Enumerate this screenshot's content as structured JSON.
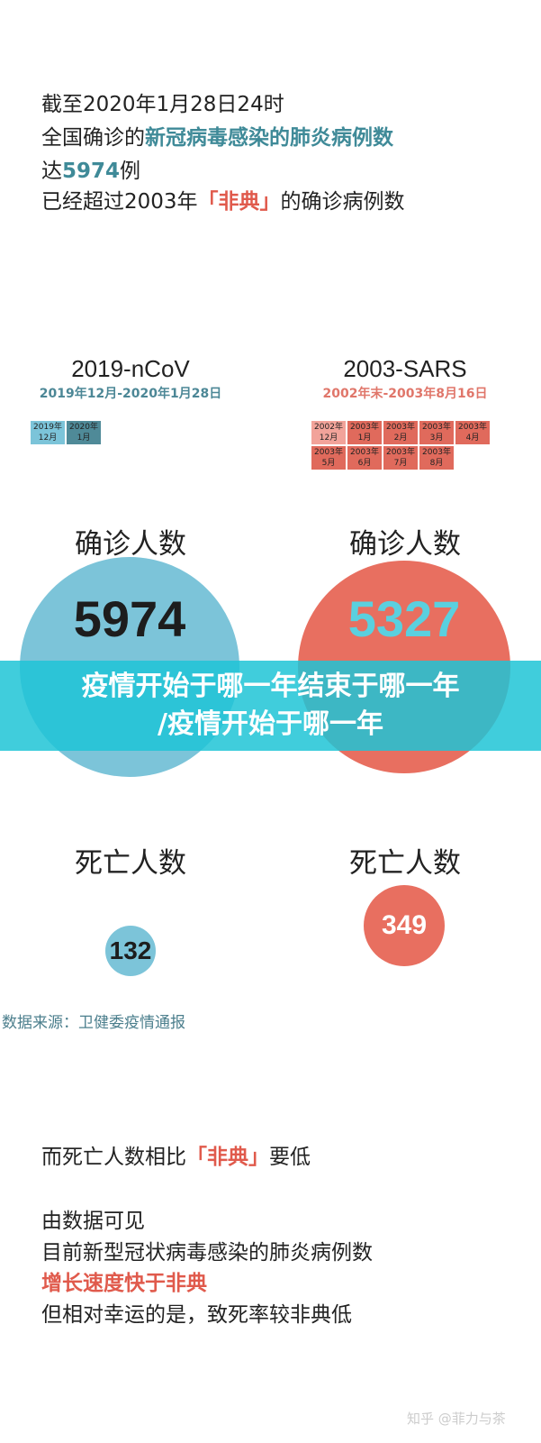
{
  "intro": {
    "l1": "截至2020年1月28日24时",
    "l2a": "全国确诊的",
    "l2b": "新冠病毒感染的肺炎病例数",
    "l3a": "达",
    "l3b": "5974",
    "l3c": "例",
    "l4a": "已经超过2003年",
    "l4b": "「非典」",
    "l4c": "的确诊病例数"
  },
  "ncov": {
    "title": "2019-nCoV",
    "range": "2019年12月-2020年1月28日",
    "months": [
      "2019年\n12月",
      "2020年\n1月"
    ],
    "confirmed_label": "确诊人数",
    "confirmed": "5974",
    "death_label": "死亡人数",
    "deaths": "132",
    "color": "#7cc4d9"
  },
  "sars": {
    "title": "2003-SARS",
    "range": "2002年末-2003年8月16日",
    "months": [
      "2002年\n12月",
      "2003年\n1月",
      "2003年\n2月",
      "2003年\n3月",
      "2003年\n4月",
      "2003年\n5月",
      "2003年\n6月",
      "2003年\n7月",
      "2003年\n8月"
    ],
    "confirmed_label": "确诊人数",
    "confirmed": "5327",
    "death_label": "死亡人数",
    "deaths": "349",
    "color": "#e86f60"
  },
  "banner": {
    "line1": "疫情开始于哪一年结束于哪一年",
    "line2": "/疫情开始于哪一年"
  },
  "source": "数据来源：卫健委疫情通报",
  "outro": {
    "l1a": "而死亡人数相比",
    "l1b": "「非典」",
    "l1c": "要低",
    "l2": "由数据可见",
    "l3": "目前新型冠状病毒感染的肺炎病例数",
    "l4": "增长速度快于非典",
    "l5": "但相对幸运的是，致死率较非典低"
  },
  "watermark": "知乎 @菲力与茶"
}
